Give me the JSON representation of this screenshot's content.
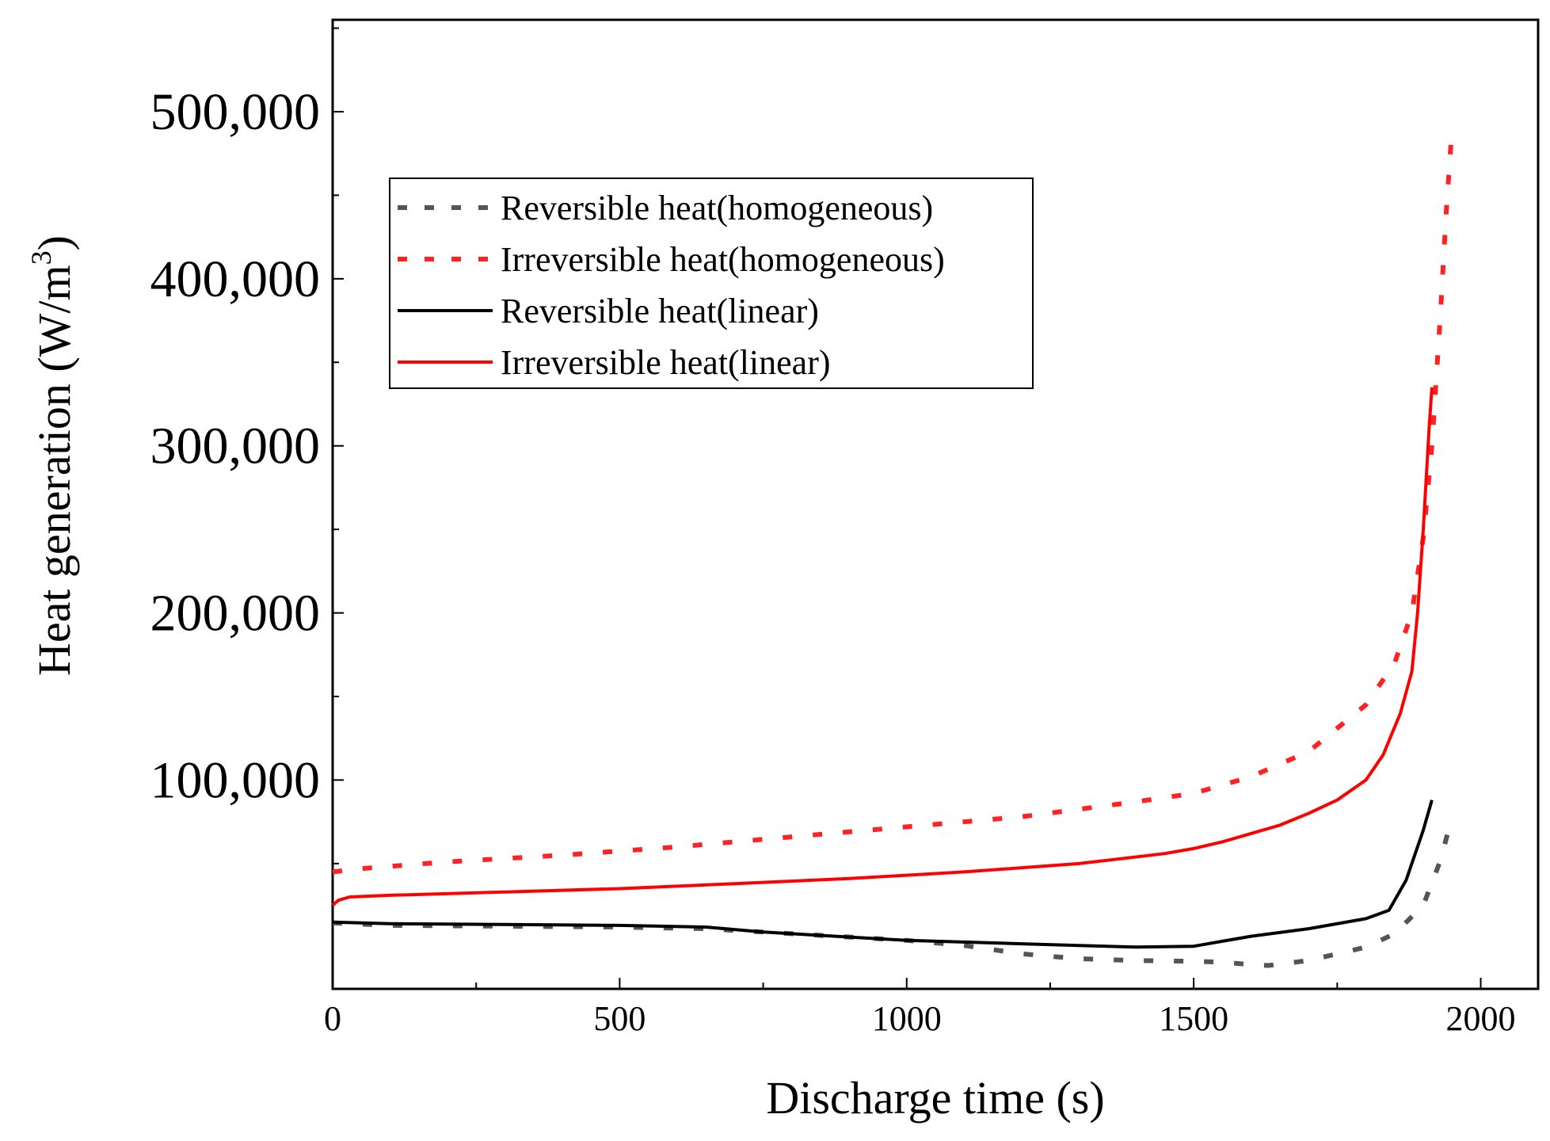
{
  "chart_data": {
    "type": "line",
    "title": "",
    "xlabel": "Discharge time (s)",
    "ylabel_main": "Heat generation (W/m",
    "ylabel_sup": "3",
    "ylabel_close": ")",
    "xlim": [
      0,
      2100
    ],
    "ylim": [
      -25000,
      555000
    ],
    "x_ticks": [
      0,
      500,
      1000,
      1500,
      2000
    ],
    "x_tick_labels": [
      "0",
      "500",
      "1000",
      "1500",
      "2000"
    ],
    "y_ticks": [
      100000,
      200000,
      300000,
      400000,
      500000
    ],
    "y_tick_labels": [
      "100,000",
      "200,000",
      "300,000",
      "400,000",
      "500,000"
    ],
    "legend_position": "upper-left",
    "series": [
      {
        "name": "Reversible heat(homogeneous)",
        "color": "#555555",
        "style": "dotted",
        "x": [
          0,
          100,
          300,
          500,
          650,
          800,
          1000,
          1100,
          1200,
          1300,
          1400,
          1500,
          1550,
          1600,
          1630,
          1700,
          1800,
          1850,
          1900,
          1930,
          1950
        ],
        "y": [
          14500,
          13000,
          12500,
          12000,
          11000,
          8000,
          4000,
          1000,
          -4000,
          -7000,
          -8000,
          -8500,
          -9000,
          -10500,
          -11000,
          -8000,
          0,
          8000,
          25000,
          52000,
          78000
        ]
      },
      {
        "name": "Irreversible heat(homogeneous)",
        "color": "#ff2222",
        "style": "dotted",
        "x": [
          0,
          50,
          200,
          400,
          600,
          800,
          1000,
          1200,
          1400,
          1500,
          1600,
          1700,
          1800,
          1850,
          1880,
          1900,
          1915,
          1930,
          1940,
          1950
        ],
        "y": [
          45000,
          47000,
          51000,
          55000,
          60000,
          66000,
          72000,
          78000,
          87000,
          92000,
          102000,
          117000,
          145000,
          170000,
          200000,
          245000,
          300000,
          380000,
          440000,
          490000
        ]
      },
      {
        "name": "Reversible heat(linear)",
        "color": "#000000",
        "style": "solid",
        "x": [
          0,
          100,
          300,
          500,
          650,
          750,
          900,
          1000,
          1200,
          1300,
          1400,
          1500,
          1550,
          1600,
          1700,
          1800,
          1840,
          1870,
          1900,
          1915
        ],
        "y": [
          15000,
          14000,
          13500,
          13000,
          12000,
          9000,
          6000,
          4000,
          2000,
          1000,
          0,
          500,
          3500,
          6500,
          11000,
          17000,
          22000,
          40000,
          70000,
          88000
        ]
      },
      {
        "name": "Irreversible heat(linear)",
        "color": "#ff0000",
        "style": "solid",
        "x": [
          0,
          10,
          30,
          100,
          300,
          500,
          700,
          900,
          1100,
          1300,
          1450,
          1500,
          1550,
          1600,
          1650,
          1700,
          1750,
          1800,
          1830,
          1860,
          1880,
          1890,
          1900,
          1910,
          1915
        ],
        "y": [
          25000,
          28000,
          30000,
          31000,
          33000,
          35000,
          38000,
          41000,
          45000,
          50000,
          56000,
          59000,
          63000,
          68000,
          73000,
          80000,
          88000,
          100000,
          115000,
          140000,
          165000,
          200000,
          250000,
          310000,
          335000
        ]
      }
    ]
  }
}
